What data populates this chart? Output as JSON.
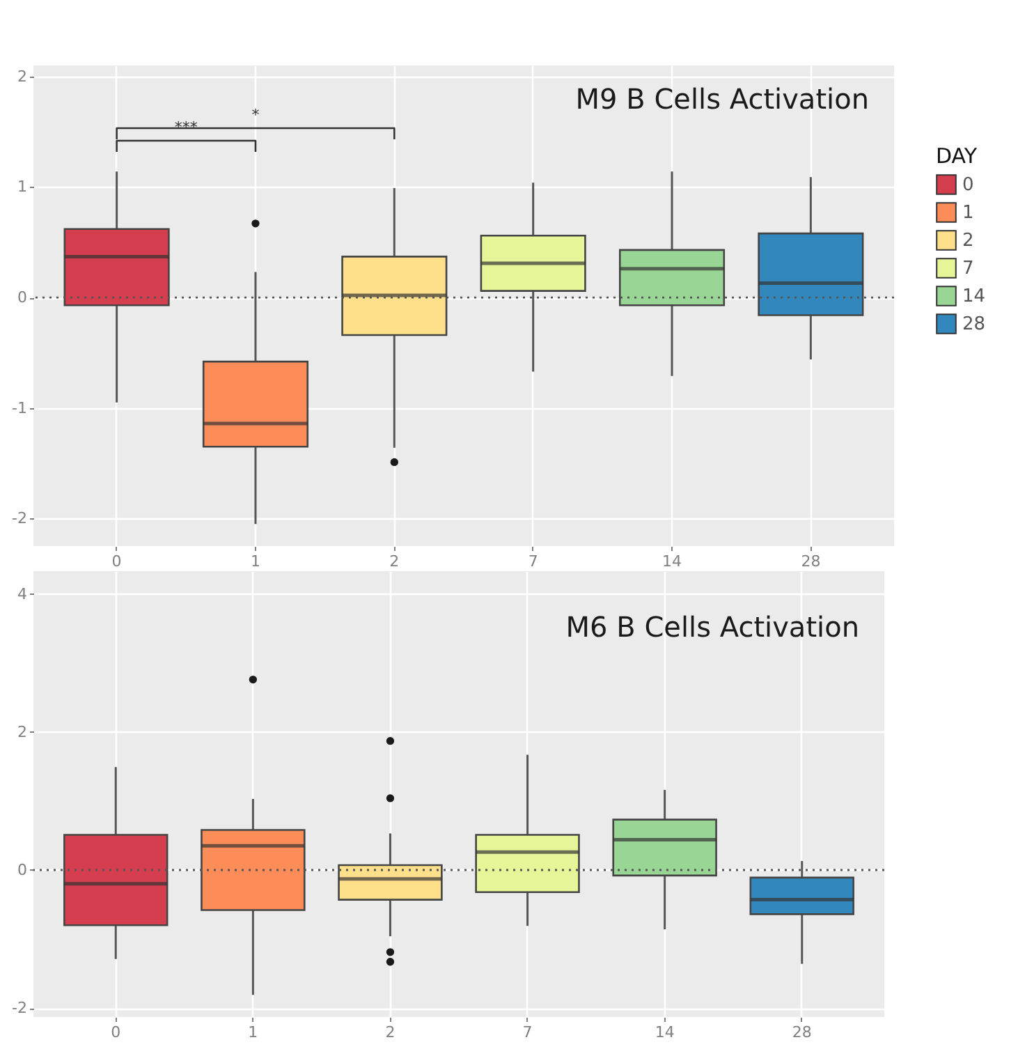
{
  "chart_data": [
    {
      "type": "box",
      "title": "M9 B Cells Activation",
      "categories": [
        "0",
        "1",
        "2",
        "7",
        "14",
        "28"
      ],
      "series": [
        {
          "name": "0",
          "color": "#d53e4f",
          "boxes": [
            {
              "low": -0.95,
              "q1": -0.07,
              "median": 0.37,
              "q3": 0.62,
              "high": 1.14
            },
            null,
            null,
            null,
            null,
            null
          ]
        },
        {
          "name": "1",
          "color": "#fc8d59",
          "boxes": [
            null,
            {
              "low": -2.05,
              "q1": -1.35,
              "median": -1.14,
              "q3": -0.58,
              "high": 0.23,
              "outliers": [
                0.67
              ]
            },
            null,
            null,
            null,
            null
          ]
        },
        {
          "name": "2",
          "color": "#fee08b",
          "boxes": [
            null,
            null,
            {
              "low": -1.36,
              "q1": -0.34,
              "median": 0.02,
              "q3": 0.37,
              "high": 0.99,
              "outliers": [
                -1.49
              ]
            },
            null,
            null,
            null
          ]
        },
        {
          "name": "7",
          "color": "#e6f598",
          "boxes": [
            null,
            null,
            null,
            {
              "low": -0.67,
              "q1": 0.06,
              "median": 0.31,
              "q3": 0.56,
              "high": 1.04
            },
            null,
            null
          ]
        },
        {
          "name": "14",
          "color": "#99d594",
          "boxes": [
            null,
            null,
            null,
            null,
            {
              "low": -0.71,
              "q1": -0.07,
              "median": 0.26,
              "q3": 0.43,
              "high": 1.14
            },
            null
          ]
        },
        {
          "name": "28",
          "color": "#3288bd",
          "boxes": [
            null,
            null,
            null,
            null,
            null,
            {
              "low": -0.56,
              "q1": -0.16,
              "median": 0.13,
              "q3": 0.58,
              "high": 1.09
            }
          ]
        }
      ],
      "ylim": [
        -2.25,
        2.1
      ],
      "yticks": [
        -2,
        -1,
        0,
        1,
        2
      ],
      "grid": true,
      "ref_lines": [
        {
          "axis": "y",
          "value": 0,
          "line_style": "dotted",
          "color": "#555555"
        }
      ],
      "legend": "right",
      "legend_title": "DAY",
      "annotations": [
        "***",
        "*"
      ]
    },
    {
      "type": "box",
      "title": "M6 B Cells Activation",
      "categories": [
        "0",
        "1",
        "2",
        "7",
        "14",
        "28"
      ],
      "series": [
        {
          "color": "#d53e4f",
          "boxes": [
            {
              "low": -1.29,
              "q1": -0.8,
              "median": -0.2,
              "q3": 0.51,
              "high": 1.49
            },
            null,
            null,
            null,
            null,
            null
          ]
        },
        {
          "color": "#fc8d59",
          "boxes": [
            null,
            {
              "low": -1.81,
              "q1": -0.58,
              "median": 0.35,
              "q3": 0.58,
              "high": 1.03,
              "outliers": [
                2.76
              ]
            },
            null,
            null,
            null,
            null
          ]
        },
        {
          "color": "#fee08b",
          "boxes": [
            null,
            null,
            {
              "low": -0.96,
              "q1": -0.43,
              "median": -0.13,
              "q3": 0.07,
              "high": 0.53,
              "outliers": [
                1.87,
                1.04,
                -1.19,
                -1.33
              ]
            },
            null,
            null,
            null
          ]
        },
        {
          "color": "#e6f598",
          "boxes": [
            null,
            null,
            null,
            {
              "low": -0.81,
              "q1": -0.32,
              "median": 0.26,
              "q3": 0.51,
              "high": 1.67
            },
            null,
            null
          ]
        },
        {
          "color": "#99d594",
          "boxes": [
            null,
            null,
            null,
            null,
            {
              "low": -0.86,
              "q1": -0.08,
              "median": 0.44,
              "q3": 0.73,
              "high": 1.16
            },
            null
          ]
        },
        {
          "color": "#3288bd",
          "boxes": [
            null,
            null,
            null,
            null,
            null,
            {
              "low": -1.36,
              "q1": -0.64,
              "median": -0.43,
              "q3": -0.11,
              "high": 0.13
            }
          ]
        }
      ],
      "ylim": [
        -2.13,
        4.33
      ],
      "yticks": [
        -2,
        0,
        2,
        4
      ],
      "grid": true,
      "ref_lines": [
        {
          "axis": "y",
          "value": 0,
          "line_style": "dotted",
          "color": "#555555"
        }
      ]
    }
  ]
}
